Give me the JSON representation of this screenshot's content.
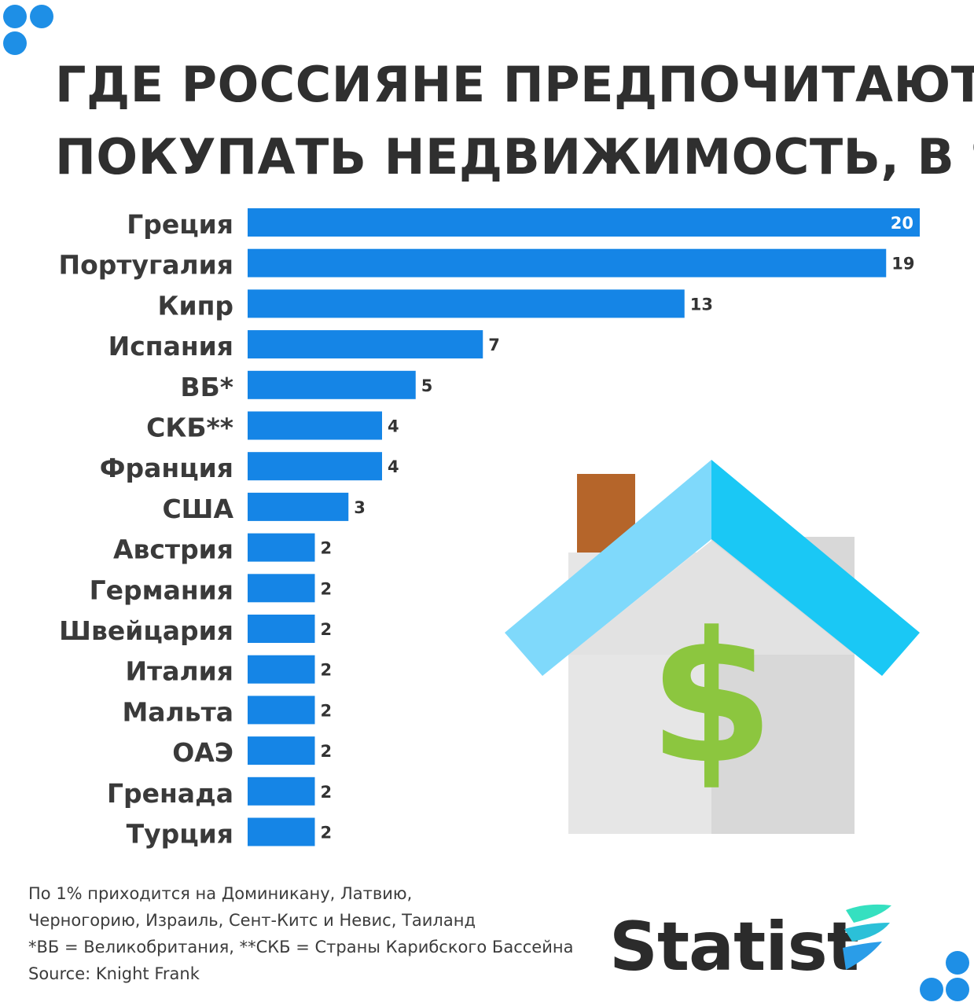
{
  "title_lines": [
    "ГДЕ РОССИЯНЕ ПРЕДПОЧИТАЮТ",
    "ПОКУПАТЬ НЕДВИЖИМОСТЬ, В %"
  ],
  "colors": {
    "bar": "#1585e6",
    "roof_left": "#7fd9fb",
    "roof_right": "#1ac8f5",
    "chimney": "#b5652a",
    "wall_left": "#e6e6e6",
    "wall_right": "#d8d8d8",
    "dollar_light": "#8cc63f",
    "dollar_dark": "#6fae2d",
    "accent_dots": "#1e8fe6",
    "logo_mark_light": "#35e0c0",
    "logo_mark_dark": "#2a9de8"
  },
  "chart_data": {
    "type": "bar",
    "orientation": "horizontal",
    "categories": [
      "Греция",
      "Португалия",
      "Кипр",
      "Испания",
      "ВБ*",
      "СКБ**",
      "Франция",
      "США",
      "Австрия",
      "Германия",
      "Швейцария",
      "Италия",
      "Мальта",
      "ОАЭ",
      "Гренада",
      "Турция"
    ],
    "values": [
      20,
      19,
      13,
      7,
      5,
      4,
      4,
      3,
      2,
      2,
      2,
      2,
      2,
      2,
      2,
      2
    ],
    "xlim": [
      0,
      20
    ],
    "grid": false,
    "legend": "none"
  },
  "notes": [
    "По 1% приходится на Доминикану, Латвию,",
    "Черногорию, Израиль, Сент-Китс и Невис, Таиланд",
    "*ВБ = Великобритания, **СКБ = Страны Карибского Бассейна",
    "Source: Knight Frank"
  ],
  "logo_text": "Statist",
  "icons": [
    "house-dollar-icon",
    "statist-logo-mark-icon",
    "decorative-dots"
  ]
}
